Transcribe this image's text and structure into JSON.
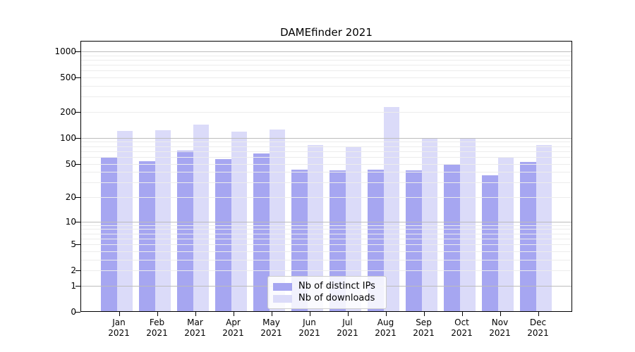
{
  "title": "DAMEfinder 2021",
  "chart_data": {
    "type": "bar",
    "title": "DAMEfinder 2021",
    "categories": [
      "Jan 2021",
      "Feb 2021",
      "Mar 2021",
      "Apr 2021",
      "May 2021",
      "Jun 2021",
      "Jul 2021",
      "Aug 2021",
      "Sep 2021",
      "Oct 2021",
      "Nov 2021",
      "Dec 2021"
    ],
    "x_tick_line1": [
      "Jan",
      "Feb",
      "Mar",
      "Apr",
      "May",
      "Jun",
      "Jul",
      "Aug",
      "Sep",
      "Oct",
      "Nov",
      "Dec"
    ],
    "x_tick_line2": "2021",
    "series": [
      {
        "name": "Nb of distinct IPs",
        "color": "#a6a6f1",
        "values": [
          59,
          52,
          70,
          56,
          65,
          42,
          41,
          42,
          41,
          49,
          36,
          51
        ]
      },
      {
        "name": "Nb of downloads",
        "color": "#dbdbf9",
        "values": [
          119,
          121,
          141,
          116,
          122,
          81,
          78,
          224,
          96,
          96,
          59,
          81
        ]
      }
    ],
    "xlabel": "",
    "ylabel": "",
    "yscale": "log10(value+1)",
    "yticks": [
      0,
      1,
      2,
      5,
      10,
      20,
      50,
      100,
      200,
      500,
      1000
    ],
    "major_grid_values": [
      1,
      10,
      100,
      1000
    ],
    "minor_grid_values": [
      2,
      3,
      4,
      5,
      6,
      7,
      8,
      9,
      20,
      30,
      40,
      50,
      60,
      70,
      80,
      90,
      200,
      300,
      400,
      500,
      600,
      700,
      800,
      900
    ],
    "ylim": [
      0,
      1300
    ],
    "grid": true,
    "legend_position": "lower center inside"
  },
  "colors": {
    "bar_ips": "#a6a6f1",
    "bar_downloads": "#dbdbf9",
    "grid_minor": "#ececec",
    "grid_major": "#bcbcbc",
    "spine": "#000000",
    "text": "#000000",
    "legend_border": "#cccccc",
    "legend_bg": "#ffffff"
  }
}
